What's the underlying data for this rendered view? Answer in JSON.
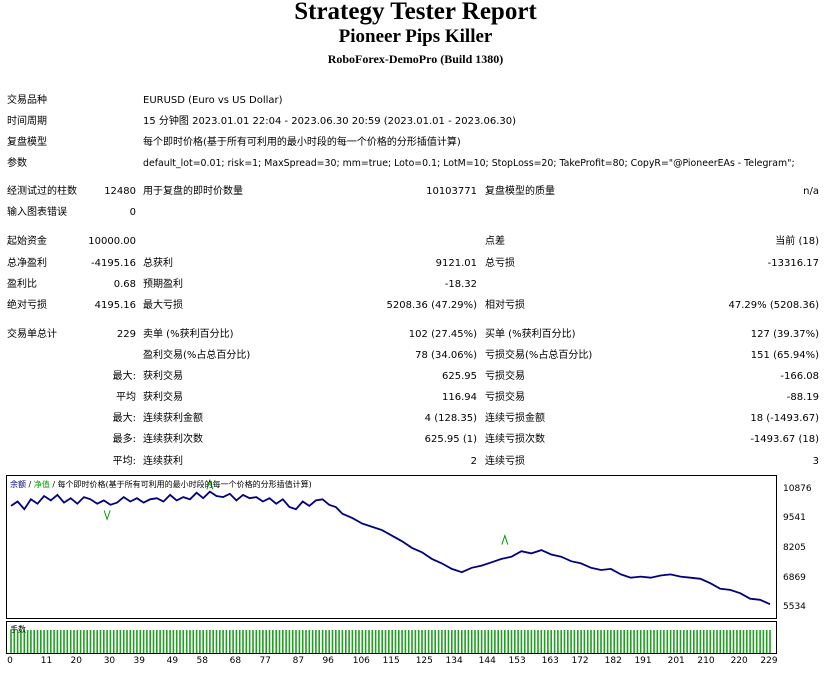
{
  "header": {
    "title": "Strategy Tester Report",
    "subtitle": "Pioneer Pips Killer",
    "build": "RoboForex-DemoPro (Build 1380)"
  },
  "info": {
    "symbol_label": "交易品种",
    "symbol_value": "EURUSD (Euro vs US Dollar)",
    "period_label": "时间周期",
    "period_value": "15 分钟图 2023.01.01 22:04 - 2023.06.30 20:59 (2023.01.01 - 2023.06.30)",
    "model_label": "复盘模型",
    "model_value": "每个即时价格(基于所有可利用的最小时段的每一个价格的分形插值计算)",
    "params_label": "参数",
    "params_value": "default_lot=0.01; risk=1; MaxSpread=30; mm=true; Loto=0.1; LotM=10; StopLoss=20; TakeProfit=80; CopyR=\"@PioneerEAs - Telegram\";"
  },
  "test": {
    "bars_label": "经测试过的柱数",
    "bars_value": "12480",
    "ticks_label": "用于复盘的即时价数量",
    "ticks_value": "10103771",
    "quality_label": "复盘模型的质量",
    "quality_value": "n/a",
    "errors_label": "输入图表错误",
    "errors_value": "0"
  },
  "money": {
    "initial_label": "起始资金",
    "initial_value": "10000.00",
    "spread_label": "点差",
    "spread_value": "当前 (18)",
    "net_label": "总净盈利",
    "net_value": "-4195.16",
    "gross_profit_label": "总获利",
    "gross_profit_value": "9121.01",
    "gross_loss_label": "总亏损",
    "gross_loss_value": "-13316.17",
    "pf_label": "盈利比",
    "pf_value": "0.68",
    "expected_label": "预期盈利",
    "expected_value": "-18.32",
    "abs_dd_label": "绝对亏损",
    "abs_dd_value": "4195.16",
    "max_dd_label": "最大亏损",
    "max_dd_value": "5208.36 (47.29%)",
    "rel_dd_label": "相对亏损",
    "rel_dd_value": "47.29% (5208.36)"
  },
  "trades": {
    "total_label": "交易单总计",
    "total_value": "229",
    "short_label": "卖单 (%获利百分比)",
    "short_value": "102 (27.45%)",
    "long_label": "买单 (%获利百分比)",
    "long_value": "127 (39.37%)",
    "profit_trades_label": "盈利交易(%占总百分比)",
    "profit_trades_value": "78 (34.06%)",
    "loss_trades_label": "亏损交易(%占总百分比)",
    "loss_trades_value": "151 (65.94%)",
    "largest_prefix": "最大:",
    "largest_profit_label": "获利交易",
    "largest_profit_value": "625.95",
    "largest_loss_label": "亏损交易",
    "largest_loss_value": "-166.08",
    "average_prefix": "平均",
    "avg_profit_label": "获利交易",
    "avg_profit_value": "116.94",
    "avg_loss_label": "亏损交易",
    "avg_loss_value": "-88.19",
    "max_prefix": "最大:",
    "max_cons_wins_label": "连续获利金额",
    "max_cons_wins_value": "4 (128.35)",
    "max_cons_losses_label": "连续亏损金额",
    "max_cons_losses_value": "18 (-1493.67)",
    "maximal_prefix": "最多:",
    "maximal_cons_profit_label": "连续获利次数",
    "maximal_cons_profit_value": "625.95 (1)",
    "maximal_cons_loss_label": "连续亏损次数",
    "maximal_cons_loss_value": "-1493.67 (18)",
    "avg_cons_prefix": "平均:",
    "avg_cons_wins_label": "连续获利",
    "avg_cons_wins_value": "2",
    "avg_cons_losses_label": "连续亏损",
    "avg_cons_losses_value": "3"
  },
  "chart_data": {
    "type": "line",
    "legend": {
      "balance": "余额",
      "equity": "净值",
      "model": "每个即时价格(基于所有可利用的最小时段的每一个价格的分形插值计算)"
    },
    "volume_label": "手数",
    "colors": {
      "balance": "#000080",
      "equity": "#00a000",
      "volume": "#1f9f1f"
    },
    "y_ticks": [
      10876,
      9541,
      8205,
      6869,
      5534
    ],
    "x_ticks": [
      0,
      11,
      20,
      30,
      39,
      49,
      58,
      68,
      77,
      87,
      96,
      106,
      115,
      125,
      134,
      144,
      153,
      163,
      172,
      182,
      191,
      201,
      210,
      220,
      229
    ],
    "x_range": [
      0,
      229
    ],
    "y_range": [
      5534,
      10876
    ],
    "balance": {
      "x": [
        0,
        2,
        4,
        6,
        8,
        10,
        12,
        14,
        16,
        18,
        20,
        22,
        24,
        26,
        28,
        30,
        32,
        34,
        36,
        38,
        40,
        42,
        44,
        46,
        48,
        50,
        52,
        54,
        56,
        58,
        60,
        62,
        64,
        66,
        68,
        70,
        72,
        74,
        76,
        78,
        80,
        82,
        84,
        86,
        88,
        90,
        92,
        94,
        96,
        98,
        100,
        103,
        106,
        109,
        112,
        115,
        118,
        121,
        124,
        127,
        130,
        133,
        136,
        139,
        142,
        145,
        148,
        151,
        154,
        157,
        160,
        163,
        166,
        169,
        172,
        175,
        178,
        181,
        184,
        187,
        190,
        193,
        196,
        199,
        202,
        205,
        208,
        211,
        214,
        217,
        220,
        223,
        226,
        229
      ],
      "y": [
        10200,
        10400,
        10050,
        10500,
        10300,
        10650,
        10450,
        10700,
        10350,
        10550,
        10300,
        10600,
        10500,
        10300,
        10450,
        10250,
        10350,
        10600,
        10400,
        10550,
        10350,
        10500,
        10550,
        10400,
        10700,
        10450,
        10600,
        10500,
        10800,
        10550,
        10850,
        10650,
        10600,
        10750,
        10450,
        10700,
        10550,
        10600,
        10400,
        10550,
        10300,
        10500,
        10150,
        10050,
        10400,
        10200,
        10450,
        10500,
        10250,
        10150,
        9850,
        9650,
        9400,
        9250,
        9100,
        8850,
        8600,
        8300,
        8100,
        7800,
        7600,
        7350,
        7200,
        7400,
        7500,
        7650,
        7800,
        7900,
        8150,
        8050,
        8200,
        8000,
        7900,
        7700,
        7600,
        7400,
        7300,
        7350,
        7100,
        6950,
        7000,
        6950,
        7050,
        7100,
        7000,
        6950,
        6900,
        6700,
        6450,
        6400,
        6250,
        6000,
        5950,
        5750
      ]
    },
    "equity_spikes": [
      {
        "x": 29,
        "y": 10000
      },
      {
        "x": 60,
        "y": 10950
      },
      {
        "x": 149,
        "y": 8450
      }
    ],
    "volume": {
      "value": 0.16,
      "range": [
        0,
        0.2
      ]
    }
  }
}
